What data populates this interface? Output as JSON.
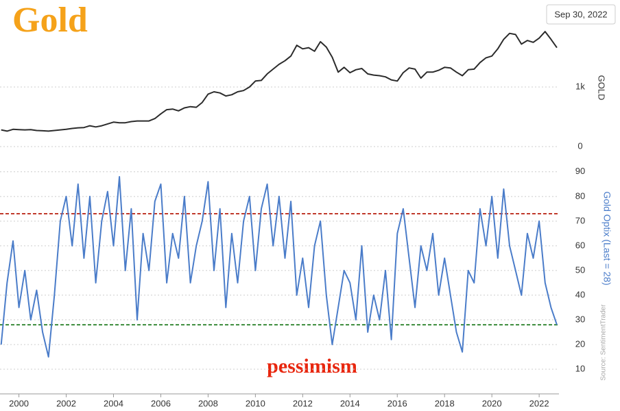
{
  "chart_data": [
    {
      "type": "line",
      "title": "Gold",
      "date_label": "Sep 30, 2022",
      "ylabel": "GOLD",
      "color": "#2b2b2b",
      "xlim": [
        1999.2,
        2022.75
      ],
      "ylim": [
        0,
        2230
      ],
      "yticks": [
        0,
        {
          "value": 1000,
          "label": "1k"
        }
      ],
      "grid": true,
      "x": [
        1999.25,
        1999.5,
        1999.75,
        2000,
        2000.25,
        2000.5,
        2000.75,
        2001,
        2001.25,
        2001.5,
        2001.75,
        2002,
        2002.25,
        2002.5,
        2002.75,
        2003,
        2003.25,
        2003.5,
        2003.75,
        2004,
        2004.25,
        2004.5,
        2004.75,
        2005,
        2005.25,
        2005.5,
        2005.75,
        2006,
        2006.25,
        2006.5,
        2006.75,
        2007,
        2007.25,
        2007.5,
        2007.75,
        2008,
        2008.25,
        2008.5,
        2008.75,
        2009,
        2009.25,
        2009.5,
        2009.75,
        2010,
        2010.25,
        2010.5,
        2010.75,
        2011,
        2011.25,
        2011.5,
        2011.75,
        2012,
        2012.25,
        2012.5,
        2012.75,
        2013,
        2013.25,
        2013.5,
        2013.75,
        2014,
        2014.25,
        2014.5,
        2014.75,
        2015,
        2015.25,
        2015.5,
        2015.75,
        2016,
        2016.25,
        2016.5,
        2016.75,
        2017,
        2017.25,
        2017.5,
        2017.75,
        2018,
        2018.25,
        2018.5,
        2018.75,
        2019,
        2019.25,
        2019.5,
        2019.75,
        2020,
        2020.25,
        2020.5,
        2020.75,
        2021,
        2021.25,
        2021.5,
        2021.75,
        2022,
        2022.25,
        2022.5,
        2022.75
      ],
      "values": [
        280,
        260,
        290,
        285,
        280,
        285,
        270,
        265,
        260,
        270,
        280,
        290,
        305,
        315,
        320,
        350,
        330,
        350,
        380,
        410,
        400,
        400,
        420,
        430,
        430,
        430,
        470,
        550,
        620,
        630,
        600,
        650,
        670,
        660,
        740,
        880,
        920,
        900,
        850,
        870,
        920,
        940,
        1000,
        1100,
        1110,
        1220,
        1300,
        1380,
        1440,
        1520,
        1700,
        1640,
        1660,
        1600,
        1760,
        1670,
        1500,
        1250,
        1330,
        1240,
        1290,
        1310,
        1220,
        1200,
        1190,
        1170,
        1120,
        1100,
        1240,
        1320,
        1300,
        1150,
        1250,
        1250,
        1280,
        1330,
        1320,
        1250,
        1190,
        1290,
        1300,
        1410,
        1490,
        1520,
        1640,
        1800,
        1900,
        1880,
        1720,
        1780,
        1750,
        1820,
        1930,
        1800,
        1660
      ]
    },
    {
      "type": "line",
      "ylabel": "Gold Optix (Last = 28)",
      "annotation": "pessimism",
      "source": "Source: SentimentTrader",
      "color": "#4a7cc9",
      "xlim": [
        1999.2,
        2022.75
      ],
      "ylim": [
        0,
        93
      ],
      "yticks": [
        10,
        20,
        30,
        40,
        50,
        60,
        70,
        80,
        90
      ],
      "grid": true,
      "xticks": [
        2000,
        2002,
        2004,
        2006,
        2008,
        2010,
        2012,
        2014,
        2016,
        2018,
        2020,
        2022
      ],
      "reference_lines": [
        {
          "value": 73,
          "color": "#c0392b"
        },
        {
          "value": 28,
          "color": "#3a8a3a"
        }
      ],
      "x": [
        1999.25,
        1999.5,
        1999.75,
        2000,
        2000.25,
        2000.5,
        2000.75,
        2001,
        2001.25,
        2001.5,
        2001.75,
        2002,
        2002.25,
        2002.5,
        2002.75,
        2003,
        2003.25,
        2003.5,
        2003.75,
        2004,
        2004.25,
        2004.5,
        2004.75,
        2005,
        2005.25,
        2005.5,
        2005.75,
        2006,
        2006.25,
        2006.5,
        2006.75,
        2007,
        2007.25,
        2007.5,
        2007.75,
        2008,
        2008.25,
        2008.5,
        2008.75,
        2009,
        2009.25,
        2009.5,
        2009.75,
        2010,
        2010.25,
        2010.5,
        2010.75,
        2011,
        2011.25,
        2011.5,
        2011.75,
        2012,
        2012.25,
        2012.5,
        2012.75,
        2013,
        2013.25,
        2013.5,
        2013.75,
        2014,
        2014.25,
        2014.5,
        2014.75,
        2015,
        2015.25,
        2015.5,
        2015.75,
        2016,
        2016.25,
        2016.5,
        2016.75,
        2017,
        2017.25,
        2017.5,
        2017.75,
        2018,
        2018.25,
        2018.5,
        2018.75,
        2019,
        2019.25,
        2019.5,
        2019.75,
        2020,
        2020.25,
        2020.5,
        2020.75,
        2021,
        2021.25,
        2021.5,
        2021.75,
        2022,
        2022.25,
        2022.5,
        2022.75
      ],
      "values": [
        20,
        45,
        62,
        35,
        50,
        30,
        42,
        25,
        15,
        40,
        70,
        80,
        60,
        85,
        55,
        80,
        45,
        70,
        82,
        60,
        88,
        50,
        75,
        30,
        65,
        50,
        78,
        85,
        45,
        65,
        55,
        80,
        45,
        60,
        70,
        86,
        50,
        75,
        35,
        65,
        45,
        70,
        80,
        50,
        75,
        85,
        60,
        80,
        55,
        78,
        40,
        55,
        35,
        60,
        70,
        40,
        20,
        35,
        50,
        45,
        30,
        60,
        25,
        40,
        30,
        50,
        22,
        65,
        75,
        55,
        35,
        60,
        50,
        65,
        40,
        55,
        40,
        25,
        17,
        50,
        45,
        75,
        60,
        80,
        55,
        83,
        60,
        50,
        40,
        65,
        55,
        70,
        45,
        35,
        28
      ]
    }
  ]
}
